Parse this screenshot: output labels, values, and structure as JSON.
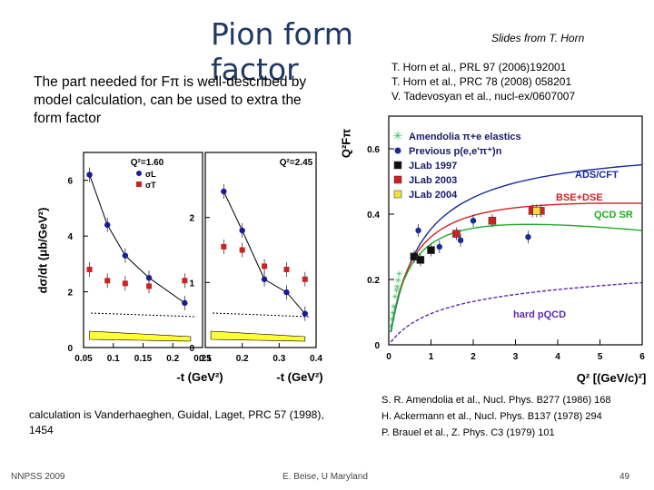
{
  "slide": {
    "title": "Pion form factor",
    "credit": "Slides from T. Horn",
    "intro_text": "The part needed for Fπ is well-described by model calculation, can be used to extra the form factor",
    "refs_top": [
      "T. Horn et al.,  PRL 97 (2006)192001",
      "T. Horn et al.,  PRC 78 (2008) 058201",
      "V. Tadevosyan et al., nucl-ex/0607007"
    ],
    "refs_bottom": [
      "S. R. Amendolia et al., Nucl. Phys. B277 (1986) 168",
      "H. Ackermann et al., Nucl. Phys. B137 (1978) 294",
      "P. Brauel et al., Z. Phys. C3 (1979) 101"
    ],
    "calc_note": "calculation is Vanderhaeghen, Guidal, Laget, PRC 57 (1998), 1454",
    "footer_left": "NNPSS 2009",
    "footer_mid": "E. Beise, U Maryland",
    "page_number": "49"
  },
  "chart_data": [
    {
      "type": "scatter",
      "title": "",
      "ylabel": "dσ/dt (μb/GeV²)",
      "xlabel": "-t (GeV²)",
      "panels": [
        {
          "label": "Q²=1.60",
          "xlim": [
            0.05,
            0.25
          ],
          "ylim": [
            0,
            7
          ],
          "xticks": [
            "0.05",
            "0.1",
            "0.15",
            "0.2",
            "0.25"
          ],
          "yticks": [
            "0",
            "2",
            "4",
            "6"
          ],
          "series": [
            {
              "name": "σL",
              "color": "#1a1a9a",
              "x": [
                0.06,
                0.09,
                0.12,
                0.16,
                0.22
              ],
              "y": [
                6.2,
                4.4,
                3.3,
                2.5,
                1.6
              ]
            },
            {
              "name": "σT",
              "color": "#cc2222",
              "x": [
                0.06,
                0.09,
                0.12,
                0.16,
                0.22
              ],
              "y": [
                2.8,
                2.4,
                2.3,
                2.2,
                2.4
              ]
            }
          ]
        },
        {
          "label": "Q²=2.45",
          "xlim": [
            0.1,
            0.4
          ],
          "ylim": [
            0,
            3
          ],
          "xticks": [
            "0.1",
            "0.2",
            "0.3",
            "0.4"
          ],
          "yticks": [
            "0",
            "1",
            "2"
          ],
          "series": [
            {
              "name": "σL",
              "color": "#1a1a9a",
              "x": [
                0.15,
                0.2,
                0.26,
                0.32,
                0.37
              ],
              "y": [
                2.4,
                1.8,
                1.05,
                0.85,
                0.52
              ]
            },
            {
              "name": "σT",
              "color": "#cc2222",
              "x": [
                0.15,
                0.2,
                0.26,
                0.32,
                0.37
              ],
              "y": [
                1.55,
                1.5,
                1.25,
                1.2,
                1.05
              ]
            }
          ]
        }
      ]
    },
    {
      "type": "scatter",
      "title": "",
      "ylabel": "Q²Fπ",
      "xlabel": "Q² [(GeV/c)²]",
      "xlim": [
        0,
        6
      ],
      "ylim": [
        0,
        0.7
      ],
      "xticks": [
        "0",
        "1",
        "2",
        "3",
        "4",
        "5",
        "6"
      ],
      "yticks": [
        "0",
        "0.2",
        "0.4",
        "0.6"
      ],
      "legend": [
        {
          "name": "Amendolia π+e elastics",
          "color": "#22bb55",
          "marker": "star"
        },
        {
          "name": "Previous p(e,e'π⁺)n",
          "color": "#1a2a99",
          "marker": "circle"
        },
        {
          "name": "JLab 1997",
          "color": "#111111",
          "marker": "square"
        },
        {
          "name": "JLab 2003",
          "color": "#cc2222",
          "marker": "square"
        },
        {
          "name": "JLab 2004",
          "color": "#f0e040",
          "marker": "square"
        }
      ],
      "curves": [
        {
          "name": "ADS/CFT",
          "color": "#1a2a99"
        },
        {
          "name": "BSE+DSE",
          "color": "#cc2222"
        },
        {
          "name": "QCD SR",
          "color": "#22aa22"
        },
        {
          "name": "hard pQCD",
          "color": "#5a2ab0"
        }
      ],
      "series": [
        {
          "name": "Amendolia π+e elastics",
          "x": [
            0.05,
            0.08,
            0.1,
            0.12,
            0.15,
            0.18,
            0.2,
            0.22,
            0.25
          ],
          "y": [
            0.06,
            0.08,
            0.1,
            0.12,
            0.15,
            0.17,
            0.18,
            0.2,
            0.22
          ]
        },
        {
          "name": "Previous p(e,e'π⁺)n",
          "x": [
            0.7,
            1.2,
            1.7,
            2.0,
            3.3
          ],
          "y": [
            0.35,
            0.3,
            0.32,
            0.38,
            0.33
          ]
        },
        {
          "name": "JLab 1997",
          "x": [
            0.6,
            0.75,
            1.0
          ],
          "y": [
            0.27,
            0.26,
            0.29
          ]
        },
        {
          "name": "JLab 2003",
          "x": [
            1.6,
            2.45,
            3.4,
            3.6
          ],
          "y": [
            0.34,
            0.38,
            0.41,
            0.41
          ]
        },
        {
          "name": "JLab 2004",
          "x": [
            3.5
          ],
          "y": [
            0.41
          ]
        }
      ]
    }
  ]
}
